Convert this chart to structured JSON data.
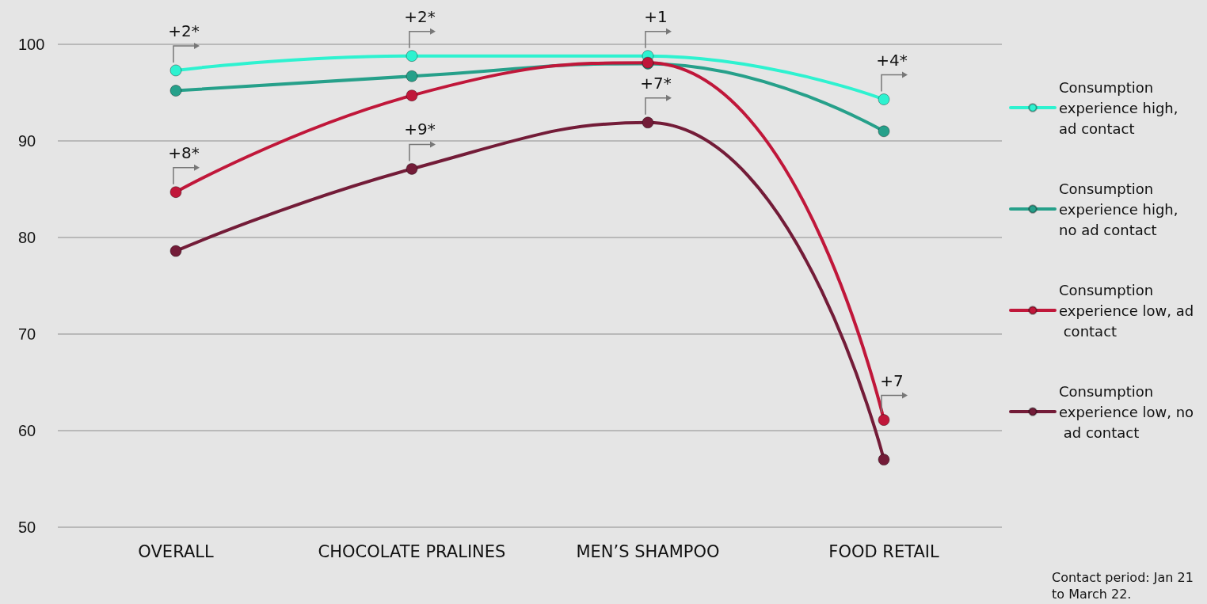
{
  "chart_data": {
    "type": "line",
    "categories": [
      "OVERALL",
      "CHOCOLATE PRALINES",
      "MEN’S SHAMPOO",
      "FOOD RETAIL"
    ],
    "series": [
      {
        "name": "Consumption experience high, ad contact",
        "color": "#2ef2d0",
        "values": [
          97.3,
          98.8,
          98.8,
          94.3
        ]
      },
      {
        "name": "Consumption experience high, no ad contact",
        "color": "#26a08a",
        "values": [
          95.2,
          96.7,
          98.0,
          91.0
        ]
      },
      {
        "name": "Consumption experience low, ad contact",
        "color": "#c0173a",
        "values": [
          84.7,
          94.7,
          98.1,
          61.1
        ]
      },
      {
        "name": "Consumption experience low, no ad contact",
        "color": "#731c38",
        "values": [
          78.6,
          87.1,
          91.9,
          57.0
        ]
      }
    ],
    "ylim": [
      50,
      100
    ],
    "yticks": [
      50,
      60,
      70,
      80,
      90,
      100
    ],
    "grid": "y",
    "legend": "right",
    "marker": "circle",
    "line_style": "solid",
    "annotations": [
      {
        "text": "+2*",
        "x": "OVERALL",
        "y": 97.3
      },
      {
        "text": "+2*",
        "x": "CHOCOLATE PRALINES",
        "y": 98.8
      },
      {
        "text": "+1",
        "x": "MEN’S SHAMPOO",
        "y": 98.8
      },
      {
        "text": "+4*",
        "x": "FOOD RETAIL",
        "y": 94.3
      },
      {
        "text": "+8*",
        "x": "OVERALL",
        "y": 84.7
      },
      {
        "text": "+9*",
        "x": "CHOCOLATE PRALINES",
        "y": 87.1
      },
      {
        "text": "+7*",
        "x": "MEN’S SHAMPOO",
        "y": 91.9
      },
      {
        "text": "+7",
        "x": "FOOD RETAIL",
        "y": 61.1
      },
      "Contact period: Jan 21 to March 22."
    ]
  }
}
